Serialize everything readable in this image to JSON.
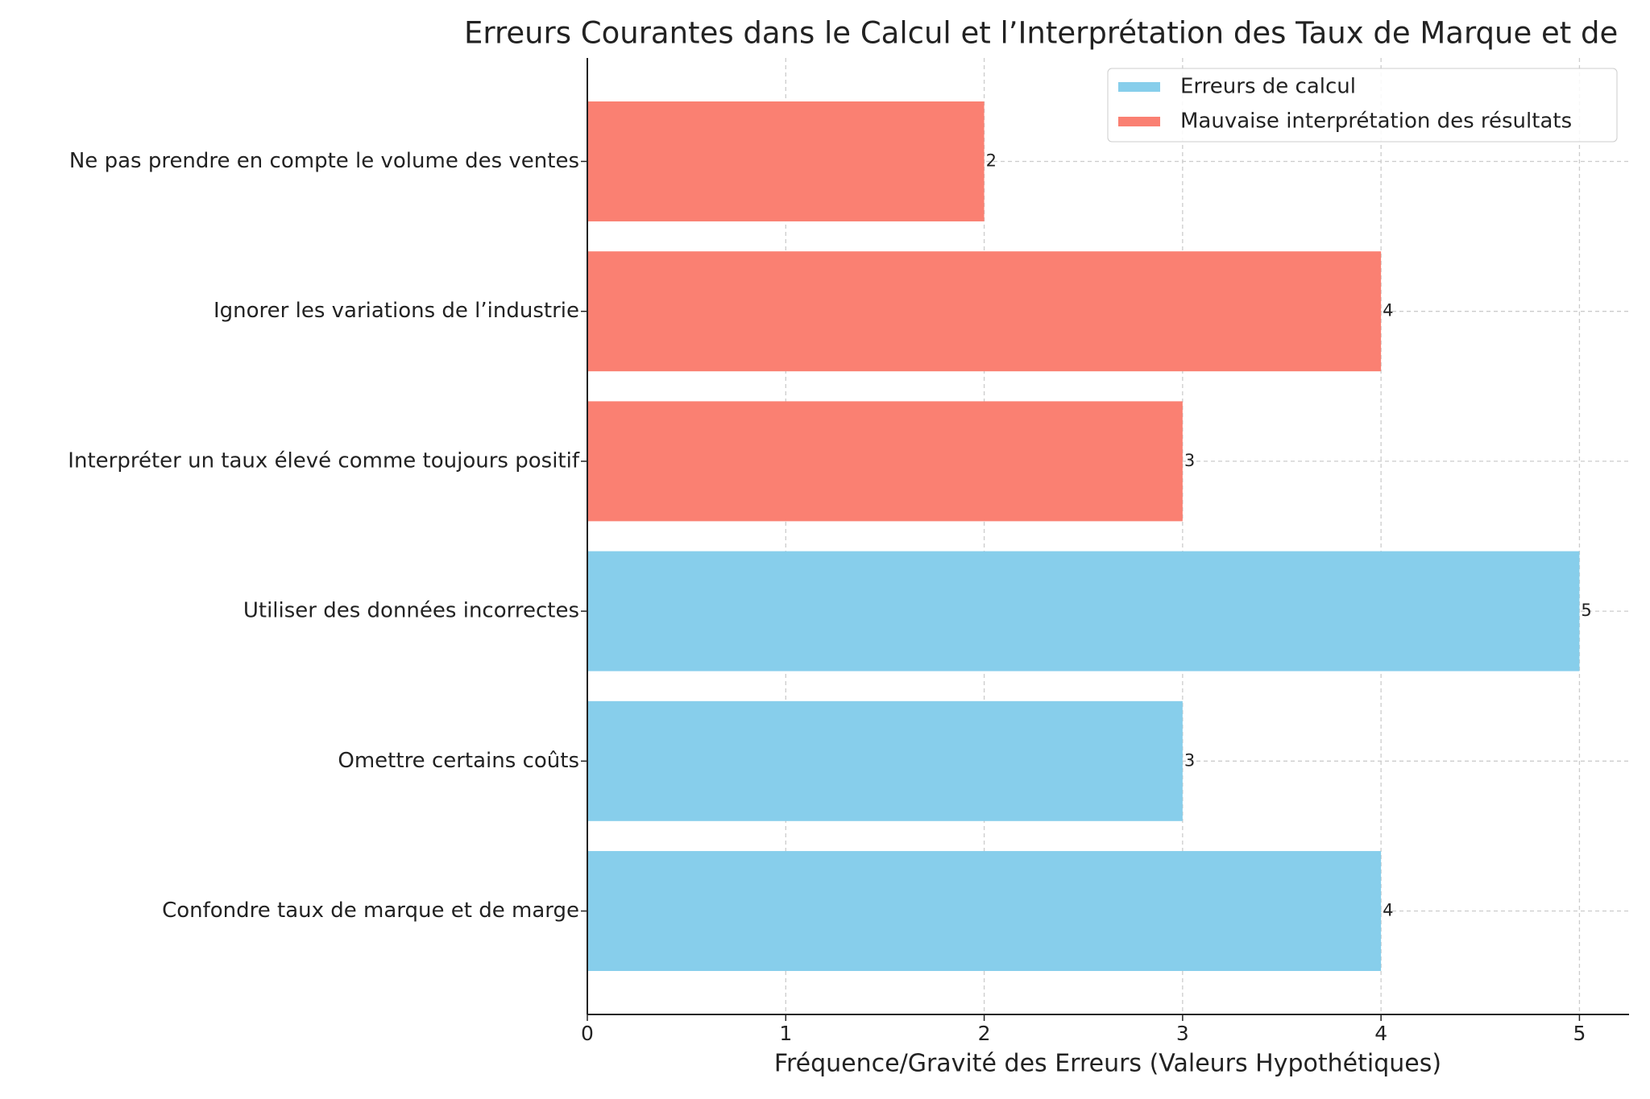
{
  "chart_data": {
    "type": "barh",
    "title": "Erreurs Courantes dans le Calcul et l’Interprétation des Taux de Marque et de",
    "xlabel": "Fréquence/Gravité des Erreurs (Valeurs Hypothétiques)",
    "categories": [
      "Confondre taux de marque et de marge",
      "Omettre certains coûts",
      "Utiliser des données incorrectes",
      "Interpréter un taux élevé comme toujours positif",
      "Ignorer les variations de l’industrie",
      "Ne pas prendre en compte le volume des ventes"
    ],
    "series": [
      {
        "name": "Erreurs de calcul",
        "color": "#87ceeb",
        "values": [
          4,
          3,
          5,
          null,
          null,
          null
        ]
      },
      {
        "name": "Mauvaise interprétation des résultats",
        "color": "#fa8072",
        "values": [
          null,
          null,
          null,
          3,
          4,
          2
        ]
      }
    ],
    "xlim": [
      0,
      5.25
    ],
    "xticks": [
      0,
      1,
      2,
      3,
      4,
      5
    ],
    "grid": true,
    "legend": "upper right"
  }
}
